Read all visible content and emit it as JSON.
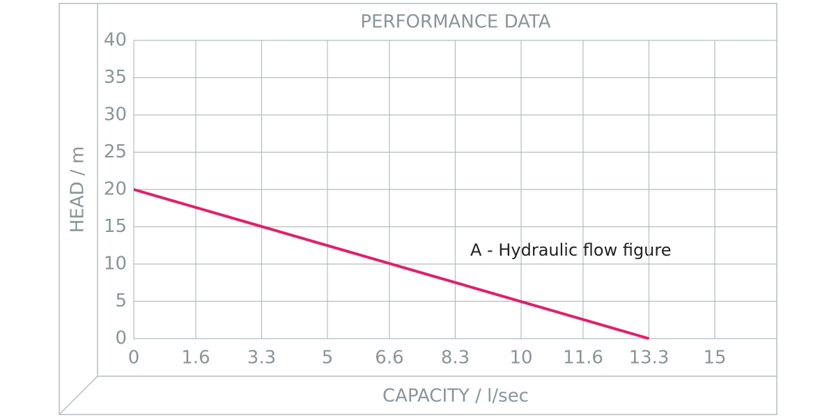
{
  "chart_data": {
    "type": "line",
    "title": "PERFORMANCE DATA",
    "x_label": "CAPACITY / l/sec",
    "y_label": "HEAD / m",
    "annotation": "A - Hydraulic flow figure",
    "x": [
      0,
      13.3
    ],
    "series": [
      {
        "name": "A - Hydraulic flow figure",
        "color": "#e0206a",
        "values": [
          20,
          0
        ]
      }
    ],
    "xlim": [
      0,
      16.6
    ],
    "xticks": [
      0,
      1.6,
      3.3,
      5,
      6.6,
      8.3,
      10,
      11.6,
      13.3,
      15
    ],
    "ylim": [
      0,
      40
    ],
    "yticks": [
      0,
      5,
      10,
      15,
      20,
      25,
      30,
      35,
      40
    ],
    "grid": true
  }
}
